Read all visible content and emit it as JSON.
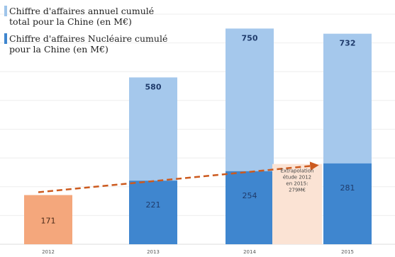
{
  "legend": {
    "items": [
      {
        "label": "Chiffre d'affaires annuel cumulé total pour la Chine (en M€)",
        "color": "#9fc5ea"
      },
      {
        "label": "Chiffre d'affaires Nucléaire cumulé pour la Chine (en M€)",
        "color": "#3f86cf"
      }
    ]
  },
  "chart_data": {
    "type": "bar",
    "categories": [
      "2012",
      "2013",
      "2014",
      "2015"
    ],
    "series": [
      {
        "name": "Chiffre d'affaires annuel cumulé total pour la Chine (en M€)",
        "values": [
          null,
          580,
          750,
          732
        ],
        "color": "#a5c8ec"
      },
      {
        "name": "Chiffre d'affaires Nucléaire cumulé pour la Chine (en M€)",
        "values": [
          171,
          221,
          254,
          281
        ],
        "color": "#3f86cf"
      }
    ],
    "highlight": {
      "category": "2012",
      "value": 171,
      "color": "#f4a77c"
    },
    "extrapolation": {
      "text_lines": [
        "Extrapolation",
        "étude 2012",
        "en 2015:",
        "279M€"
      ],
      "value": 279,
      "color": "#fbe3d4"
    },
    "trend_line": {
      "from": "2012",
      "to": "2015",
      "style": "dashed",
      "color": "#cc5a1e"
    },
    "ylim": [
      0,
      800
    ],
    "grid": true,
    "legend_position": "top-left"
  }
}
